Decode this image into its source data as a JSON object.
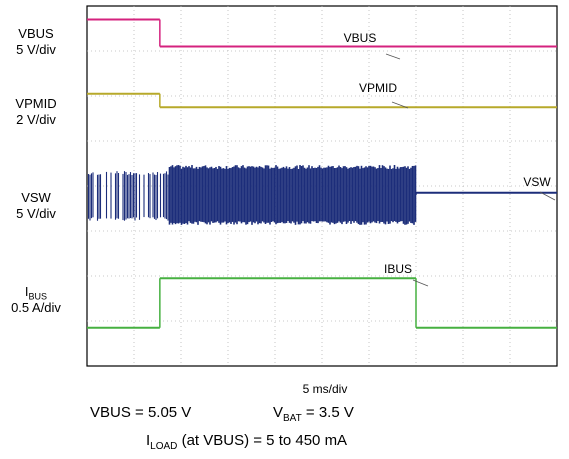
{
  "chart_data": {
    "type": "line",
    "time_scale": "5 ms/div",
    "divisions_x": 10,
    "divisions_y": 8,
    "grid": true,
    "series": [
      {
        "name": "VBUS",
        "label_text": "VBUS",
        "scale_label": "5 V/div",
        "color": "#d4227e",
        "segments": [
          {
            "t_div": [
              0,
              1.55
            ],
            "level_div": 7.7
          },
          {
            "t_div": [
              1.55,
              10
            ],
            "level_div": 7.1
          }
        ],
        "trace_label": "VBUS"
      },
      {
        "name": "VPMID",
        "label_text": "VPMID",
        "scale_label": "2 V/div",
        "color": "#b7a92a",
        "segments": [
          {
            "t_div": [
              0,
              1.55
            ],
            "level_div": 6.05
          },
          {
            "t_div": [
              1.55,
              10
            ],
            "level_div": 5.75
          }
        ],
        "trace_label": "VPMID"
      },
      {
        "name": "VSW",
        "label_text": "VSW",
        "scale_label": "5 V/div",
        "color": "#1c2d7a",
        "segments": [
          {
            "t_div": [
              0,
              7.0
            ],
            "level_div": 3.8,
            "switching": true
          },
          {
            "t_div": [
              7.0,
              10
            ],
            "level_div": 3.85
          }
        ],
        "trace_label": "VSW"
      },
      {
        "name": "IBUS",
        "label_text": "I",
        "label_sub": "BUS",
        "scale_label": "0.5 A/div",
        "color": "#46b040",
        "segments": [
          {
            "t_div": [
              0,
              1.55
            ],
            "level_div": 0.85
          },
          {
            "t_div": [
              1.55,
              7.0
            ],
            "level_div": 1.95
          },
          {
            "t_div": [
              7.0,
              10
            ],
            "level_div": 0.85
          }
        ],
        "trace_label": "IBUS"
      }
    ]
  },
  "conditions": {
    "vbus": "VBUS = 5.05 V",
    "vbat_prefix": "V",
    "vbat_sub": "BAT",
    "vbat_suffix": " = 3.5 V",
    "iload_prefix": "I",
    "iload_sub": "LOAD",
    "iload_suffix": " (at VBUS) = 5 to 450 mA"
  },
  "colors": {
    "grid": "#b8b8b8",
    "frame": "#000000"
  }
}
